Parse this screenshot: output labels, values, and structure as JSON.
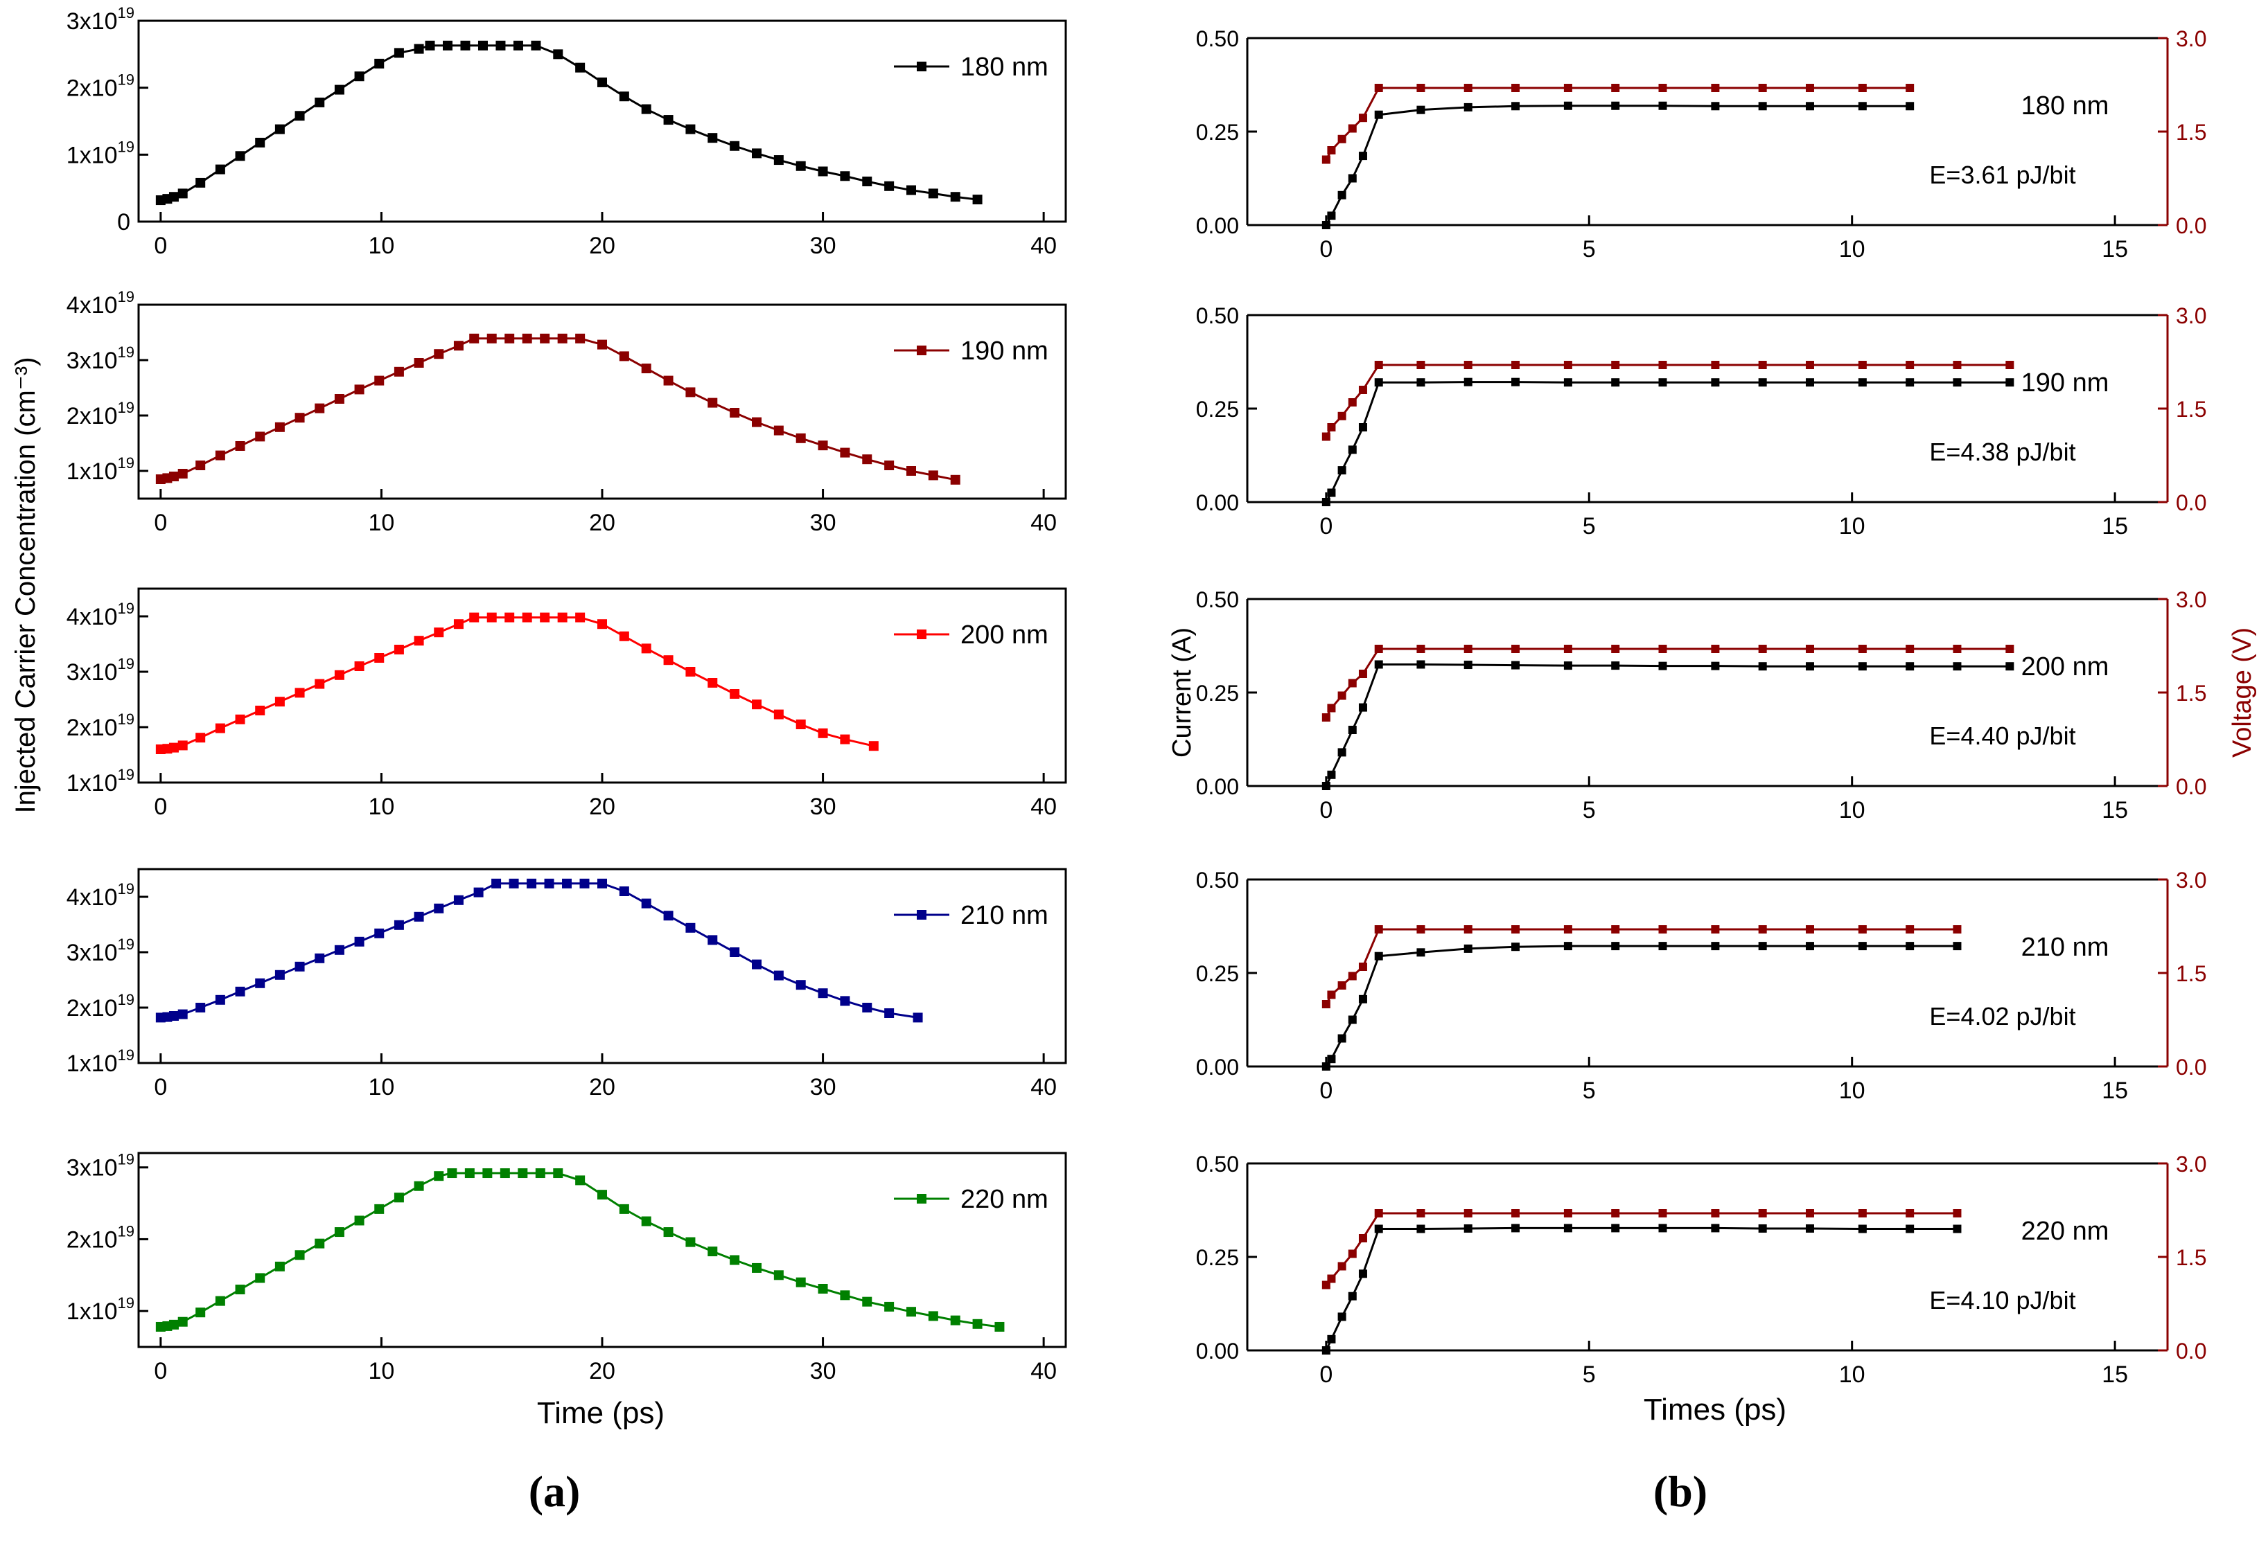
{
  "figure": {
    "panel_a_label": "(a)",
    "panel_b_label": "(b)",
    "colors": {
      "axis": "#000000",
      "voltage_axis": "#8b0000",
      "current_series": "#000000",
      "voltage_series": "#8b0000"
    }
  },
  "panel_a": {
    "ylabel": "Injected  Carrier Concentration (cm⁻³)",
    "xlabel": "Time (ps)",
    "xlim": [
      -1,
      41
    ],
    "xticks": [
      "0",
      "10",
      "20",
      "30",
      "40"
    ],
    "ytick_base": "1x10",
    "ytick_exp": "19"
  },
  "panel_b": {
    "xlabel": "Times (ps)",
    "ylabel_left": "Current (A)",
    "ylabel_right": "Voltage (V)",
    "xlim": [
      -1.5,
      16
    ],
    "xticks": [
      "0",
      "5",
      "10",
      "15"
    ],
    "yticks_left": [
      "0.00",
      "0.25",
      "0.50"
    ],
    "yticks_right": [
      "0.0",
      "1.5",
      "3.0"
    ],
    "ylim_left": [
      0,
      0.5
    ],
    "ylim_right": [
      0,
      3
    ]
  },
  "chart_data": [
    {
      "type": "line",
      "panel": "a",
      "ylim": [
        0,
        3
      ],
      "yticks": [
        {
          "v": 0,
          "label": "0"
        },
        {
          "v": 1,
          "label": "1x10",
          "exp": "19"
        },
        {
          "v": 2,
          "label": "2x10",
          "exp": "19"
        },
        {
          "v": 3,
          "label": "3x10",
          "exp": "19"
        }
      ],
      "series": [
        {
          "name": "180 nm",
          "color": "#000000",
          "x": [
            0,
            0.3,
            0.6,
            1,
            1.8,
            2.7,
            3.6,
            4.5,
            5.4,
            6.3,
            7.2,
            8.1,
            9,
            9.9,
            10.8,
            11.7,
            12.2,
            13,
            13.8,
            14.6,
            15.4,
            16.2,
            17,
            18,
            19,
            20,
            21,
            22,
            23,
            24,
            25,
            26,
            27,
            28,
            29,
            30,
            31,
            32,
            33,
            34,
            35,
            36,
            37
          ],
          "y": [
            0.32,
            0.34,
            0.37,
            0.42,
            0.58,
            0.78,
            0.98,
            1.18,
            1.38,
            1.58,
            1.78,
            1.97,
            2.17,
            2.36,
            2.52,
            2.58,
            2.63,
            2.63,
            2.63,
            2.63,
            2.63,
            2.63,
            2.63,
            2.5,
            2.3,
            2.08,
            1.87,
            1.68,
            1.52,
            1.38,
            1.25,
            1.13,
            1.02,
            0.92,
            0.83,
            0.75,
            0.68,
            0.6,
            0.53,
            0.47,
            0.42,
            0.37,
            0.33
          ]
        }
      ]
    },
    {
      "type": "line",
      "panel": "a",
      "ylim": [
        0.5,
        4
      ],
      "yticks": [
        {
          "v": 1,
          "label": "1x10",
          "exp": "19"
        },
        {
          "v": 2,
          "label": "2x10",
          "exp": "19"
        },
        {
          "v": 3,
          "label": "3x10",
          "exp": "19"
        },
        {
          "v": 4,
          "label": "4x10",
          "exp": "19"
        }
      ],
      "series": [
        {
          "name": "190 nm",
          "color": "#8b0000",
          "x": [
            0,
            0.3,
            0.6,
            1,
            1.8,
            2.7,
            3.6,
            4.5,
            5.4,
            6.3,
            7.2,
            8.1,
            9,
            9.9,
            10.8,
            11.7,
            12.6,
            13.5,
            14.2,
            15,
            15.8,
            16.6,
            17.4,
            18.2,
            19,
            20,
            21,
            22,
            23,
            24,
            25,
            26,
            27,
            28,
            29,
            30,
            31,
            32,
            33,
            34,
            35,
            36
          ],
          "y": [
            0.85,
            0.87,
            0.9,
            0.95,
            1.1,
            1.28,
            1.45,
            1.62,
            1.79,
            1.96,
            2.13,
            2.3,
            2.47,
            2.63,
            2.79,
            2.95,
            3.11,
            3.26,
            3.39,
            3.39,
            3.39,
            3.39,
            3.39,
            3.39,
            3.39,
            3.28,
            3.07,
            2.85,
            2.63,
            2.42,
            2.23,
            2.05,
            1.88,
            1.73,
            1.59,
            1.46,
            1.33,
            1.21,
            1.1,
            1.0,
            0.92,
            0.84
          ]
        }
      ]
    },
    {
      "type": "line",
      "panel": "a",
      "ylim": [
        1,
        4.5
      ],
      "yticks": [
        {
          "v": 1,
          "label": "1x10",
          "exp": "19"
        },
        {
          "v": 2,
          "label": "2x10",
          "exp": "19"
        },
        {
          "v": 3,
          "label": "3x10",
          "exp": "19"
        },
        {
          "v": 4,
          "label": "4x10",
          "exp": "19"
        }
      ],
      "series": [
        {
          "name": "200 nm",
          "color": "#ff0000",
          "x": [
            0,
            0.3,
            0.6,
            1,
            1.8,
            2.7,
            3.6,
            4.5,
            5.4,
            6.3,
            7.2,
            8.1,
            9,
            9.9,
            10.8,
            11.7,
            12.6,
            13.5,
            14.2,
            15,
            15.8,
            16.6,
            17.4,
            18.2,
            19,
            20,
            21,
            22,
            23,
            24,
            25,
            26,
            27,
            28,
            29,
            30,
            31,
            32.3
          ],
          "y": [
            1.6,
            1.61,
            1.63,
            1.67,
            1.81,
            1.98,
            2.14,
            2.3,
            2.46,
            2.62,
            2.78,
            2.94,
            3.1,
            3.25,
            3.4,
            3.56,
            3.71,
            3.86,
            3.98,
            3.98,
            3.98,
            3.98,
            3.98,
            3.98,
            3.98,
            3.86,
            3.64,
            3.42,
            3.21,
            3.0,
            2.8,
            2.6,
            2.41,
            2.23,
            2.05,
            1.89,
            1.78,
            1.66
          ]
        }
      ]
    },
    {
      "type": "line",
      "panel": "a",
      "ylim": [
        1,
        4.5
      ],
      "yticks": [
        {
          "v": 1,
          "label": "1x10",
          "exp": "19"
        },
        {
          "v": 2,
          "label": "2x10",
          "exp": "19"
        },
        {
          "v": 3,
          "label": "3x10",
          "exp": "19"
        },
        {
          "v": 4,
          "label": "4x10",
          "exp": "19"
        }
      ],
      "series": [
        {
          "name": "210 nm",
          "color": "#00008b",
          "x": [
            0,
            0.3,
            0.6,
            1,
            1.8,
            2.7,
            3.6,
            4.5,
            5.4,
            6.3,
            7.2,
            8.1,
            9,
            9.9,
            10.8,
            11.7,
            12.6,
            13.5,
            14.4,
            15.2,
            16,
            16.8,
            17.6,
            18.4,
            19.2,
            20,
            21,
            22,
            23,
            24,
            25,
            26,
            27,
            28,
            29,
            30,
            31,
            32,
            33,
            34.3
          ],
          "y": [
            1.82,
            1.83,
            1.85,
            1.88,
            2.0,
            2.14,
            2.29,
            2.44,
            2.59,
            2.74,
            2.89,
            3.04,
            3.19,
            3.34,
            3.49,
            3.64,
            3.79,
            3.94,
            4.08,
            4.24,
            4.24,
            4.24,
            4.24,
            4.24,
            4.24,
            4.24,
            4.1,
            3.88,
            3.66,
            3.44,
            3.22,
            3.0,
            2.78,
            2.58,
            2.41,
            2.26,
            2.12,
            2.0,
            1.9,
            1.82
          ]
        }
      ]
    },
    {
      "type": "line",
      "panel": "a",
      "ylim": [
        0.5,
        3.2
      ],
      "yticks": [
        {
          "v": 1,
          "label": "1x10",
          "exp": "19"
        },
        {
          "v": 2,
          "label": "2x10",
          "exp": "19"
        },
        {
          "v": 3,
          "label": "3x10",
          "exp": "19"
        }
      ],
      "series": [
        {
          "name": "220 nm",
          "color": "#008000",
          "x": [
            0,
            0.3,
            0.6,
            1,
            1.8,
            2.7,
            3.6,
            4.5,
            5.4,
            6.3,
            7.2,
            8.1,
            9,
            9.9,
            10.8,
            11.7,
            12.6,
            13.2,
            14,
            14.8,
            15.6,
            16.4,
            17.2,
            18,
            19,
            20,
            21,
            22,
            23,
            24,
            25,
            26,
            27,
            28,
            29,
            30,
            31,
            32,
            33,
            34,
            35,
            36,
            37,
            38
          ],
          "y": [
            0.78,
            0.79,
            0.81,
            0.85,
            0.98,
            1.14,
            1.3,
            1.46,
            1.62,
            1.78,
            1.94,
            2.1,
            2.26,
            2.42,
            2.58,
            2.74,
            2.88,
            2.92,
            2.92,
            2.92,
            2.92,
            2.92,
            2.92,
            2.92,
            2.82,
            2.62,
            2.42,
            2.25,
            2.1,
            1.96,
            1.83,
            1.71,
            1.6,
            1.5,
            1.4,
            1.31,
            1.22,
            1.13,
            1.06,
            0.99,
            0.93,
            0.87,
            0.82,
            0.78
          ]
        }
      ]
    },
    {
      "type": "line",
      "panel": "b",
      "label": "180 nm",
      "annotation": "E=3.61 pJ/bit",
      "current": {
        "x": [
          0,
          0.1,
          0.3,
          0.5,
          0.7,
          1,
          1.8,
          2.7,
          3.6,
          4.6,
          5.5,
          6.4,
          7.4,
          8.3,
          9.2,
          10.2,
          11.1
        ],
        "y": [
          0,
          0.025,
          0.08,
          0.125,
          0.185,
          0.295,
          0.308,
          0.315,
          0.318,
          0.319,
          0.319,
          0.319,
          0.318,
          0.318,
          0.318,
          0.318,
          0.318
        ]
      },
      "voltage": {
        "x": [
          0,
          0.1,
          0.3,
          0.5,
          0.7,
          1,
          1.8,
          2.7,
          3.6,
          4.6,
          5.5,
          6.4,
          7.4,
          8.3,
          9.2,
          10.2,
          11.1
        ],
        "y": [
          1.05,
          1.2,
          1.38,
          1.55,
          1.72,
          2.2,
          2.2,
          2.2,
          2.2,
          2.2,
          2.2,
          2.2,
          2.2,
          2.2,
          2.2,
          2.2,
          2.2
        ]
      }
    },
    {
      "type": "line",
      "panel": "b",
      "label": "190 nm",
      "annotation": "E=4.38 pJ/bit",
      "current": {
        "x": [
          0,
          0.1,
          0.3,
          0.5,
          0.7,
          1,
          1.8,
          2.7,
          3.6,
          4.6,
          5.5,
          6.4,
          7.4,
          8.3,
          9.2,
          10.2,
          11.1,
          12,
          13
        ],
        "y": [
          0,
          0.025,
          0.085,
          0.14,
          0.2,
          0.32,
          0.32,
          0.321,
          0.321,
          0.32,
          0.32,
          0.32,
          0.32,
          0.32,
          0.32,
          0.32,
          0.32,
          0.32,
          0.32
        ]
      },
      "voltage": {
        "x": [
          0,
          0.1,
          0.3,
          0.5,
          0.7,
          1,
          1.8,
          2.7,
          3.6,
          4.6,
          5.5,
          6.4,
          7.4,
          8.3,
          9.2,
          10.2,
          11.1,
          12,
          13
        ],
        "y": [
          1.05,
          1.2,
          1.38,
          1.6,
          1.8,
          2.2,
          2.2,
          2.2,
          2.2,
          2.2,
          2.2,
          2.2,
          2.2,
          2.2,
          2.2,
          2.2,
          2.2,
          2.2,
          2.2
        ]
      }
    },
    {
      "type": "line",
      "panel": "b",
      "label": "200 nm",
      "annotation": "E=4.40 pJ/bit",
      "current": {
        "x": [
          0,
          0.1,
          0.3,
          0.5,
          0.7,
          1,
          1.8,
          2.7,
          3.6,
          4.6,
          5.5,
          6.4,
          7.4,
          8.3,
          9.2,
          10.2,
          11.1,
          12,
          13
        ],
        "y": [
          0,
          0.03,
          0.09,
          0.15,
          0.21,
          0.325,
          0.325,
          0.324,
          0.323,
          0.322,
          0.322,
          0.321,
          0.321,
          0.32,
          0.32,
          0.32,
          0.32,
          0.32,
          0.32
        ]
      },
      "voltage": {
        "x": [
          0,
          0.1,
          0.3,
          0.5,
          0.7,
          1,
          1.8,
          2.7,
          3.6,
          4.6,
          5.5,
          6.4,
          7.4,
          8.3,
          9.2,
          10.2,
          11.1,
          12,
          13
        ],
        "y": [
          1.1,
          1.25,
          1.45,
          1.65,
          1.8,
          2.2,
          2.2,
          2.2,
          2.2,
          2.2,
          2.2,
          2.2,
          2.2,
          2.2,
          2.2,
          2.2,
          2.2,
          2.2,
          2.2
        ]
      }
    },
    {
      "type": "line",
      "panel": "b",
      "label": "210 nm",
      "annotation": "E=4.02 pJ/bit",
      "current": {
        "x": [
          0,
          0.1,
          0.3,
          0.5,
          0.7,
          1,
          1.8,
          2.7,
          3.6,
          4.6,
          5.5,
          6.4,
          7.4,
          8.3,
          9.2,
          10.2,
          11.1,
          12
        ],
        "y": [
          0,
          0.02,
          0.075,
          0.125,
          0.18,
          0.295,
          0.305,
          0.315,
          0.32,
          0.322,
          0.322,
          0.322,
          0.322,
          0.322,
          0.322,
          0.322,
          0.322,
          0.322
        ]
      },
      "voltage": {
        "x": [
          0,
          0.1,
          0.3,
          0.5,
          0.7,
          1,
          1.8,
          2.7,
          3.6,
          4.6,
          5.5,
          6.4,
          7.4,
          8.3,
          9.2,
          10.2,
          11.1,
          12
        ],
        "y": [
          1.0,
          1.15,
          1.3,
          1.45,
          1.6,
          2.2,
          2.2,
          2.2,
          2.2,
          2.2,
          2.2,
          2.2,
          2.2,
          2.2,
          2.2,
          2.2,
          2.2,
          2.2
        ]
      }
    },
    {
      "type": "line",
      "panel": "b",
      "label": "220 nm",
      "annotation": "E=4.10 pJ/bit",
      "current": {
        "x": [
          0,
          0.1,
          0.3,
          0.5,
          0.7,
          1,
          1.8,
          2.7,
          3.6,
          4.6,
          5.5,
          6.4,
          7.4,
          8.3,
          9.2,
          10.2,
          11.1,
          12
        ],
        "y": [
          0,
          0.03,
          0.09,
          0.145,
          0.205,
          0.325,
          0.325,
          0.326,
          0.327,
          0.327,
          0.327,
          0.327,
          0.327,
          0.326,
          0.326,
          0.325,
          0.325,
          0.325
        ]
      },
      "voltage": {
        "x": [
          0,
          0.1,
          0.3,
          0.5,
          0.7,
          1,
          1.8,
          2.7,
          3.6,
          4.6,
          5.5,
          6.4,
          7.4,
          8.3,
          9.2,
          10.2,
          11.1,
          12
        ],
        "y": [
          1.05,
          1.15,
          1.35,
          1.55,
          1.8,
          2.2,
          2.2,
          2.2,
          2.2,
          2.2,
          2.2,
          2.2,
          2.2,
          2.2,
          2.2,
          2.2,
          2.2,
          2.2
        ]
      }
    }
  ]
}
